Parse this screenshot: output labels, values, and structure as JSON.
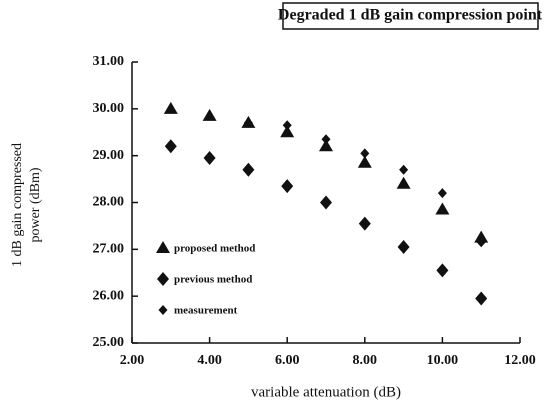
{
  "chart_data": {
    "type": "scatter",
    "title": "Degraded 1 dB gain compression point",
    "x_label": "variable attenuation (dB)",
    "y_label": [
      "1 dB gain compressed",
      "power (dBm)"
    ],
    "x": [
      3,
      4,
      5,
      6,
      7,
      8,
      9,
      10,
      11
    ],
    "series": [
      {
        "name": "proposed method",
        "color": "#111111",
        "marker": "triangle",
        "values": [
          30.0,
          29.85,
          29.7,
          29.5,
          29.2,
          28.85,
          28.4,
          27.85,
          27.25
        ]
      },
      {
        "name": "previous method",
        "color": "#111111",
        "marker": "diamond",
        "values": [
          29.2,
          28.95,
          28.7,
          28.35,
          28.0,
          27.55,
          27.05,
          26.55,
          25.95
        ]
      },
      {
        "name": "measurement",
        "color": "#111111",
        "marker": "small-diamond",
        "values": [
          null,
          null,
          29.7,
          29.65,
          29.35,
          29.05,
          28.7,
          28.2,
          27.15
        ]
      }
    ],
    "xlim": [
      2,
      12
    ],
    "xticks": [
      {
        "value": 2,
        "label": "2.00"
      },
      {
        "value": 4,
        "label": "4.00"
      },
      {
        "value": 6,
        "label": "6.00"
      },
      {
        "value": 8,
        "label": "8.00"
      },
      {
        "value": 10,
        "label": "10.00"
      },
      {
        "value": 12,
        "label": "12.00"
      }
    ],
    "ylim": [
      25,
      31
    ],
    "yticks": [
      {
        "value": 25,
        "label": "25.00"
      },
      {
        "value": 26,
        "label": "26.00"
      },
      {
        "value": 27,
        "label": "27.00"
      },
      {
        "value": 28,
        "label": "28.00"
      },
      {
        "value": 29,
        "label": "29.00"
      },
      {
        "value": 30,
        "label": "30.00"
      },
      {
        "value": 31,
        "label": "31.00"
      }
    ],
    "legend": "lower left"
  }
}
